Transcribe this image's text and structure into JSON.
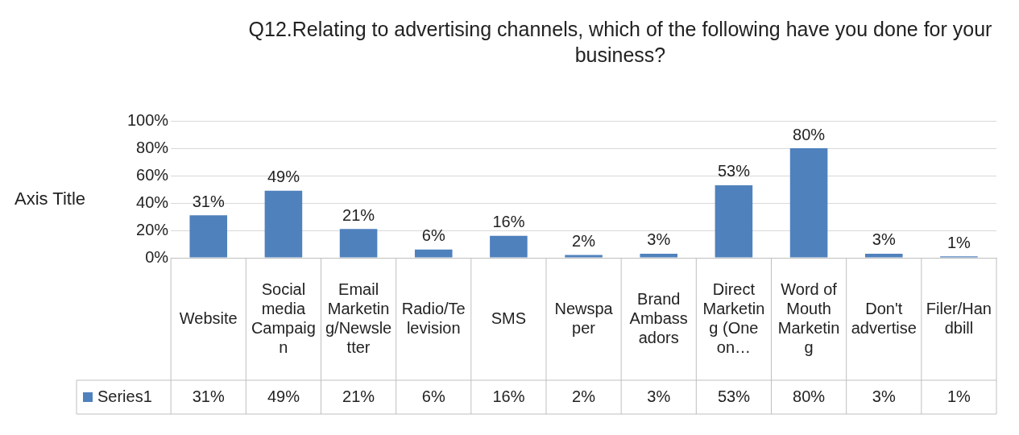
{
  "chart_data": {
    "type": "bar",
    "title": "Q12.Relating to advertising channels, which of the following have you done for your business?",
    "ylabel": "Axis Title",
    "categories": [
      "Website",
      "Social media Campaign",
      "Email Marketing/Newsletter",
      "Radio/Television",
      "SMS",
      "Newspaper",
      "Brand Ambassadors",
      "Direct Marketing (One on…",
      "Word of Mouth Marketing",
      "Don't advertise",
      "Filer/Handbill"
    ],
    "series": [
      {
        "name": "Series1",
        "color": "#4f81bd",
        "values": [
          31,
          49,
          21,
          6,
          16,
          2,
          3,
          53,
          80,
          3,
          1
        ],
        "value_labels": [
          "31%",
          "49%",
          "21%",
          "6%",
          "16%",
          "2%",
          "3%",
          "53%",
          "80%",
          "3%",
          "1%"
        ]
      }
    ],
    "ylim": [
      0,
      100
    ],
    "yticks": [
      {
        "value": 0,
        "label": "0%"
      },
      {
        "value": 20,
        "label": "20%"
      },
      {
        "value": 40,
        "label": "40%"
      },
      {
        "value": 60,
        "label": "60%"
      },
      {
        "value": 80,
        "label": "80%"
      },
      {
        "value": 100,
        "label": "100%"
      }
    ],
    "grid": "y",
    "legend": "bottom"
  }
}
